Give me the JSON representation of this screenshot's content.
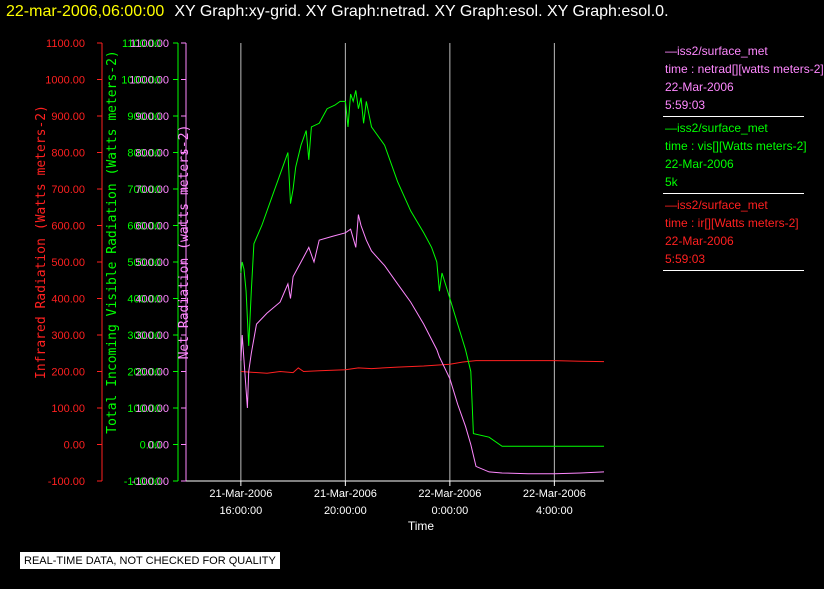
{
  "title_bar": {
    "date": "22-mar-2006,06:00:00",
    "graphs": "XY Graph:xy-grid.  XY Graph:netrad.  XY Graph:esol.  XY Graph:esol.0."
  },
  "legend": [
    {
      "name": "—iss2/surface_met",
      "desc": "time : netrad[][watts meters-2]",
      "date": "22-Mar-2006",
      "extra": "5:59:03",
      "color": "#ff88ff"
    },
    {
      "name": "—iss2/surface_met",
      "desc": "time : vis[][Watts meters-2]",
      "date": "22-Mar-2006",
      "extra": "5k",
      "color": "#00ff00"
    },
    {
      "name": "—iss2/surface_met",
      "desc": "time : ir[][Watts meters-2]",
      "date": "22-Mar-2006",
      "extra": "5:59:03",
      "color": "#ff2020"
    }
  ],
  "quality_note": "REAL-TIME DATA, NOT CHECKED FOR QUALITY",
  "chart_data": {
    "type": "line",
    "xlabel": "Time",
    "x_ticks": [
      {
        "date": "21-Mar-2006",
        "time": "16:00:00",
        "hours": 16
      },
      {
        "date": "21-Mar-2006",
        "time": "20:00:00",
        "hours": 20
      },
      {
        "date": "22-Mar-2006",
        "time": "0:00:00",
        "hours": 24
      },
      {
        "date": "22-Mar-2006",
        "time": "4:00:00",
        "hours": 28
      }
    ],
    "xlim_hours": [
      13.9,
      29.9
    ],
    "ylim": [
      -100,
      1100
    ],
    "y_ticks": [
      "1100.00",
      "1000.00",
      "900.00",
      "800.00",
      "700.00",
      "600.00",
      "500.00",
      "400.00",
      "300.00",
      "200.00",
      "100.00",
      "0.00",
      "-100.00"
    ],
    "grid": "vertical lines at x ticks",
    "axes": [
      {
        "label": "Infrared Radiation (Watts meters-2)",
        "color": "#ff2020"
      },
      {
        "label": "Total Incoming Visible Radiation (Watts meters-2)",
        "color": "#00ff00"
      },
      {
        "label": "Net Radiation (watts meters-2)",
        "color": "#ff88ff"
      }
    ],
    "series": [
      {
        "name": "ir",
        "color": "#ff2020",
        "points": [
          [
            16.0,
            200
          ],
          [
            17.0,
            195
          ],
          [
            17.5,
            200
          ],
          [
            18.0,
            197
          ],
          [
            18.2,
            210
          ],
          [
            18.4,
            200
          ],
          [
            19.0,
            202
          ],
          [
            20.0,
            205
          ],
          [
            20.5,
            210
          ],
          [
            21.0,
            208
          ],
          [
            22.0,
            212
          ],
          [
            23.0,
            215
          ],
          [
            24.0,
            220
          ],
          [
            24.5,
            226
          ],
          [
            25.0,
            230
          ],
          [
            26.0,
            230
          ],
          [
            27.0,
            230
          ],
          [
            28.0,
            230
          ],
          [
            29.0,
            228
          ],
          [
            29.9,
            227
          ]
        ]
      },
      {
        "name": "vis",
        "color": "#00ff00",
        "points": [
          [
            16.0,
            470
          ],
          [
            16.05,
            500
          ],
          [
            16.12,
            480
          ],
          [
            16.2,
            420
          ],
          [
            16.3,
            270
          ],
          [
            16.4,
            420
          ],
          [
            16.5,
            550
          ],
          [
            16.8,
            600
          ],
          [
            17.2,
            680
          ],
          [
            17.6,
            760
          ],
          [
            17.8,
            800
          ],
          [
            17.9,
            660
          ],
          [
            18.0,
            700
          ],
          [
            18.1,
            760
          ],
          [
            18.3,
            820
          ],
          [
            18.5,
            860
          ],
          [
            18.6,
            780
          ],
          [
            18.7,
            870
          ],
          [
            19.0,
            880
          ],
          [
            19.3,
            920
          ],
          [
            19.6,
            930
          ],
          [
            19.8,
            940
          ],
          [
            20.0,
            940
          ],
          [
            20.1,
            870
          ],
          [
            20.2,
            960
          ],
          [
            20.3,
            940
          ],
          [
            20.4,
            970
          ],
          [
            20.5,
            920
          ],
          [
            20.6,
            950
          ],
          [
            20.7,
            880
          ],
          [
            20.8,
            940
          ],
          [
            21.0,
            870
          ],
          [
            21.5,
            820
          ],
          [
            22.0,
            720
          ],
          [
            22.5,
            640
          ],
          [
            23.0,
            580
          ],
          [
            23.3,
            540
          ],
          [
            23.5,
            500
          ],
          [
            23.6,
            420
          ],
          [
            23.7,
            470
          ],
          [
            24.0,
            400
          ],
          [
            24.3,
            330
          ],
          [
            24.6,
            260
          ],
          [
            24.8,
            200
          ],
          [
            24.9,
            30
          ],
          [
            25.5,
            20
          ],
          [
            26.0,
            -5
          ],
          [
            27.0,
            -5
          ],
          [
            28.0,
            -5
          ],
          [
            29.0,
            -5
          ],
          [
            29.9,
            -5
          ]
        ]
      },
      {
        "name": "netrad",
        "color": "#ff88ff",
        "points": [
          [
            16.0,
            230
          ],
          [
            16.05,
            300
          ],
          [
            16.1,
            250
          ],
          [
            16.2,
            150
          ],
          [
            16.25,
            100
          ],
          [
            16.3,
            200
          ],
          [
            16.4,
            250
          ],
          [
            16.6,
            330
          ],
          [
            17.0,
            360
          ],
          [
            17.5,
            390
          ],
          [
            17.8,
            440
          ],
          [
            17.9,
            400
          ],
          [
            18.0,
            460
          ],
          [
            18.3,
            500
          ],
          [
            18.6,
            540
          ],
          [
            18.8,
            500
          ],
          [
            19.0,
            560
          ],
          [
            19.5,
            570
          ],
          [
            20.0,
            580
          ],
          [
            20.2,
            590
          ],
          [
            20.4,
            540
          ],
          [
            20.5,
            630
          ],
          [
            20.6,
            600
          ],
          [
            20.8,
            560
          ],
          [
            21.0,
            530
          ],
          [
            21.5,
            490
          ],
          [
            22.0,
            440
          ],
          [
            22.5,
            390
          ],
          [
            23.0,
            330
          ],
          [
            23.5,
            260
          ],
          [
            23.6,
            240
          ],
          [
            24.0,
            180
          ],
          [
            24.3,
            110
          ],
          [
            24.6,
            50
          ],
          [
            24.8,
            0
          ],
          [
            25.0,
            -60
          ],
          [
            25.5,
            -75
          ],
          [
            26.0,
            -78
          ],
          [
            27.0,
            -80
          ],
          [
            28.0,
            -80
          ],
          [
            29.0,
            -78
          ],
          [
            29.9,
            -75
          ]
        ]
      }
    ]
  }
}
